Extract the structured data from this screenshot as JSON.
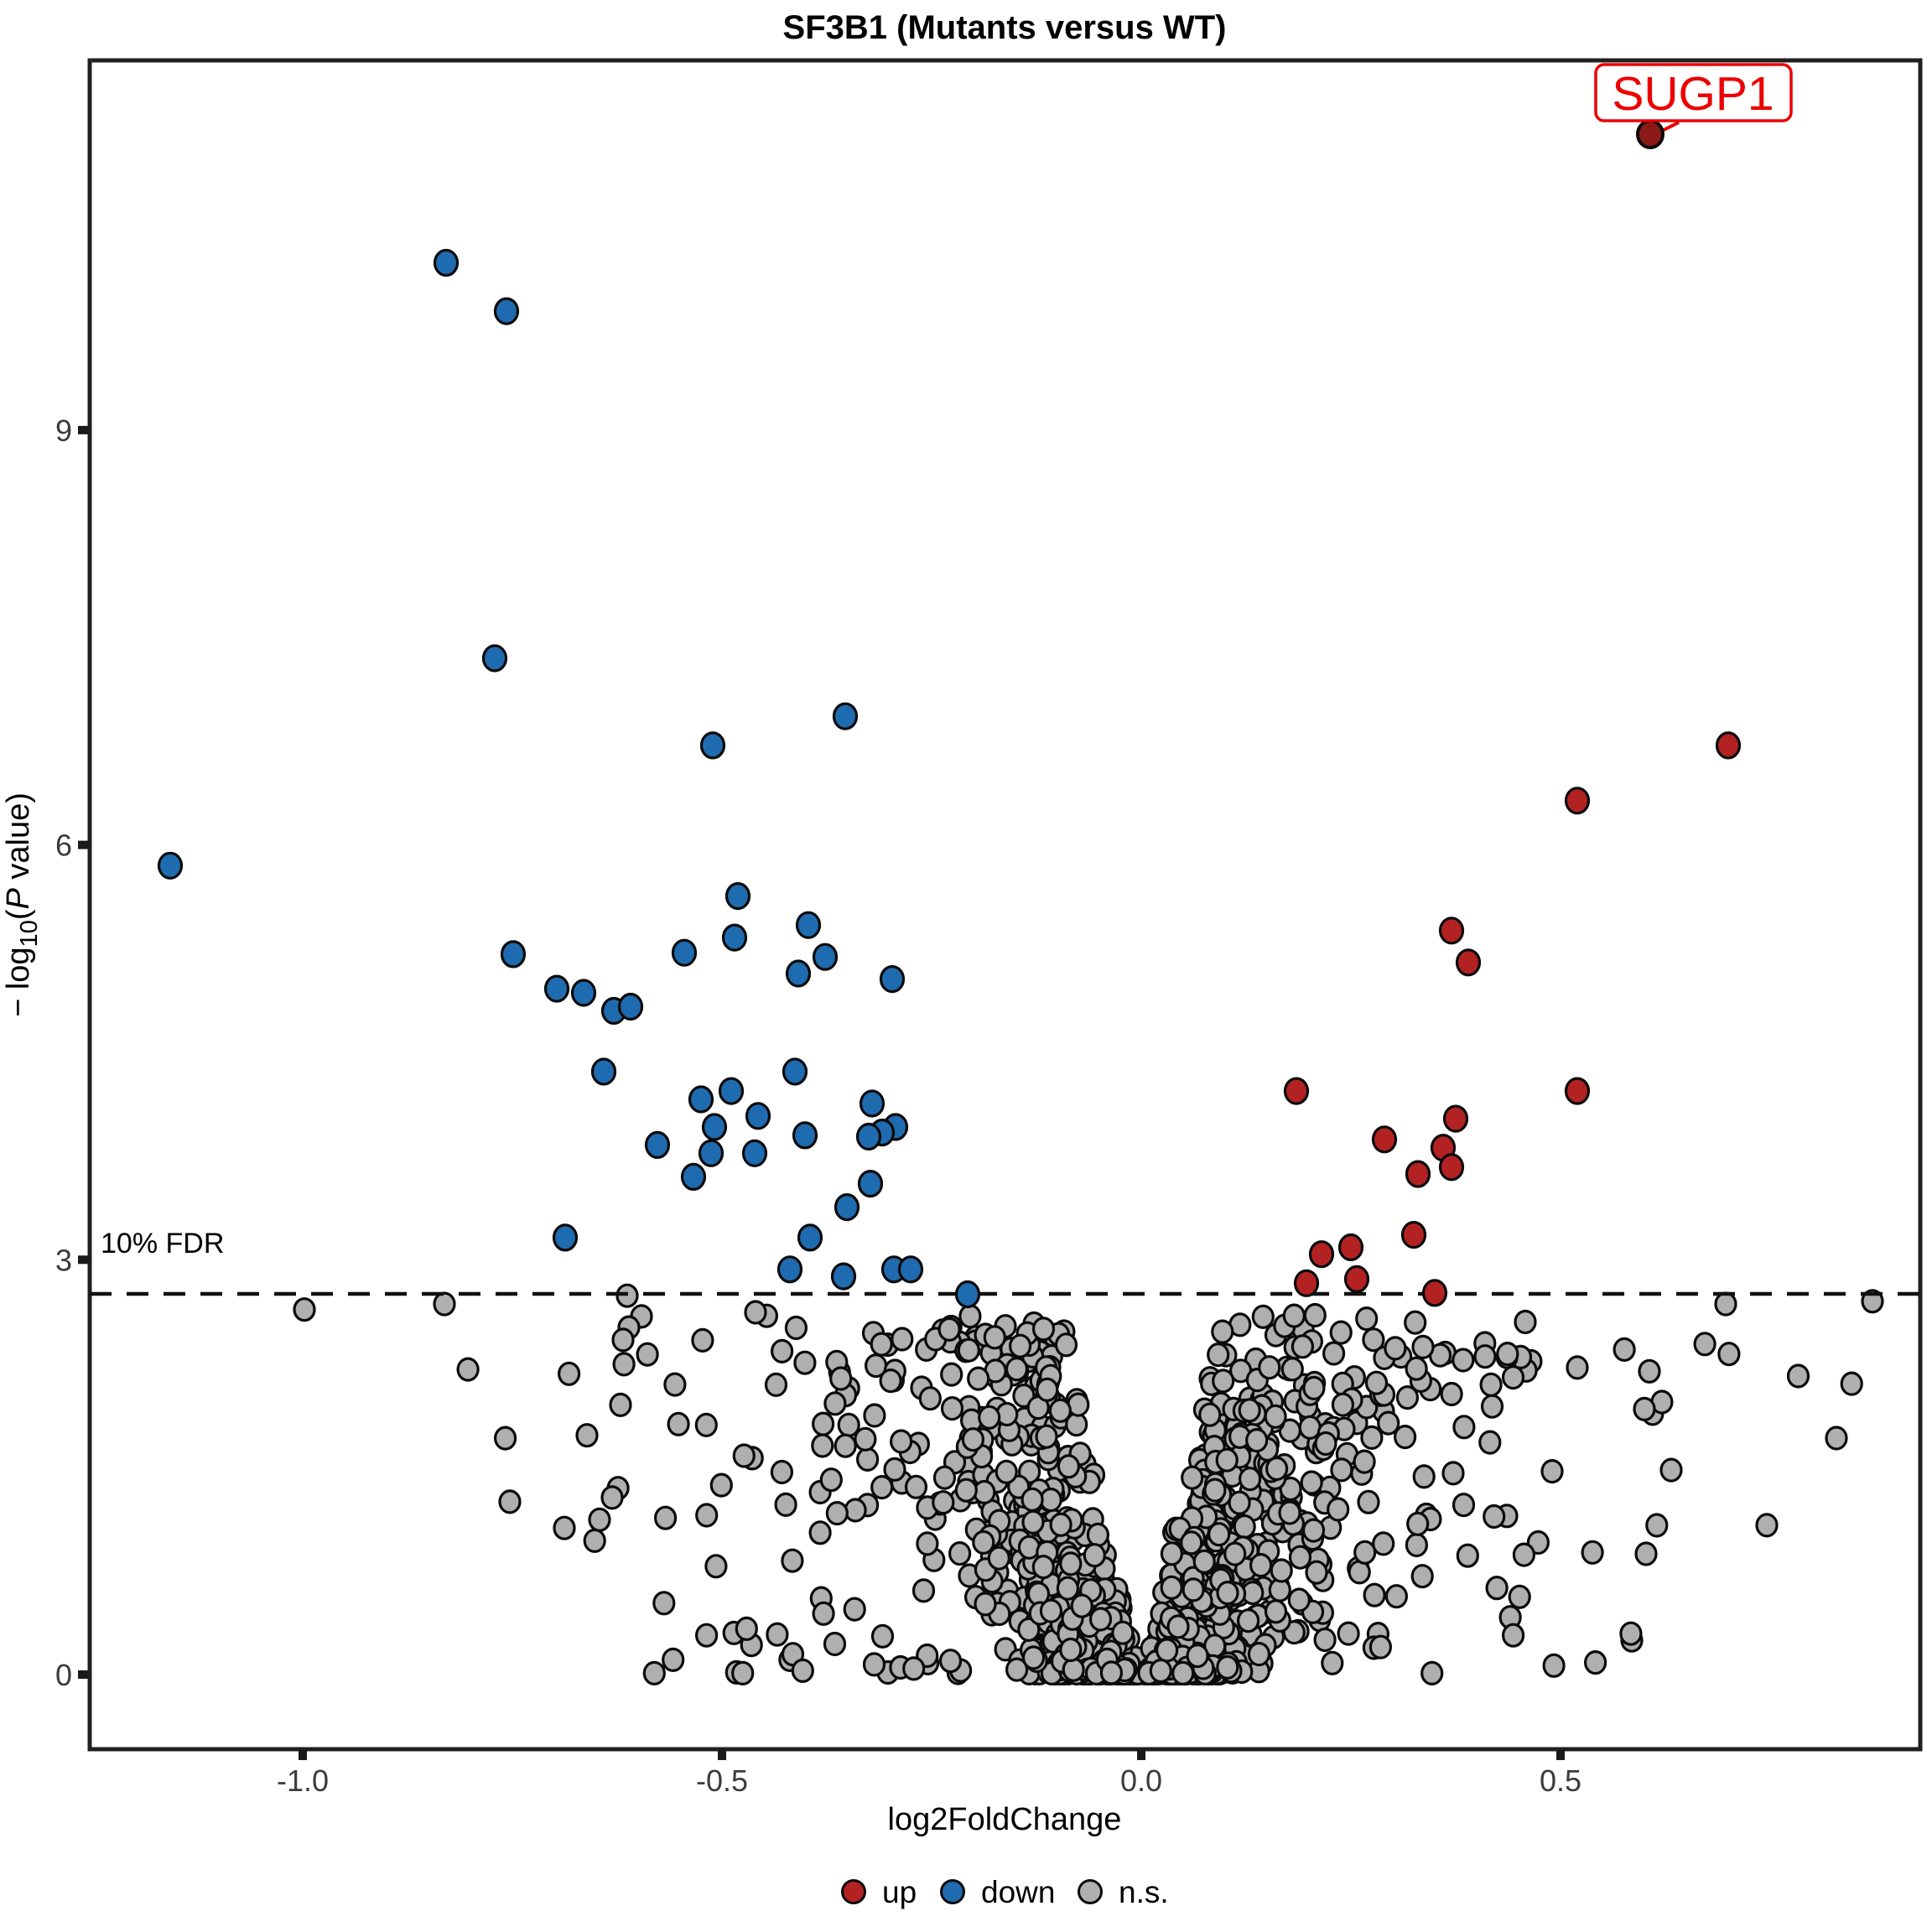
{
  "title": "SF3B1 (Mutants versus WT)",
  "annotation": {
    "label": "SUGP1"
  },
  "fdr": {
    "label": "10% FDR"
  },
  "legend": {
    "position": "bottom-center"
  },
  "colors": {
    "up": "#B22222",
    "down": "#1F6BB0",
    "ns": "#AFAFAF",
    "highlight_point": "#8B1A17",
    "annotation_red": "#EC0000",
    "point_stroke": "#0B0B0B",
    "panel_border": "#202020",
    "tick_label": "#3C3C3C"
  },
  "chart_data": {
    "type": "scatter",
    "title": "SF3B1 (Mutants versus WT)",
    "xlabel": "log2FoldChange",
    "ylabel": "-log10(P value)",
    "ylabel_parts": [
      {
        "t": "− log"
      },
      {
        "t": "10",
        "sub": true
      },
      {
        "t": "("
      },
      {
        "t": "P",
        "italic": true
      },
      {
        "t": " value)"
      }
    ],
    "xlim": [
      -1.25,
      0.93
    ],
    "ylim": [
      -0.55,
      11.7
    ],
    "x_ticks": {
      "values": [
        -1.0,
        -0.5,
        0.0,
        0.5
      ],
      "labels": [
        "-1.0",
        "-0.5",
        "0.0",
        "0.5"
      ]
    },
    "y_ticks": {
      "values": [
        0,
        3,
        6,
        9
      ],
      "labels": [
        "0",
        "3",
        "6",
        "9"
      ]
    },
    "grid": false,
    "legend_position": "bottom",
    "fdr_line": {
      "y": 2.75,
      "label": "10% FDR",
      "style": "dashed"
    },
    "highlight": {
      "label": "SUGP1",
      "x": 0.607,
      "y": 11.13
    },
    "series": [
      {
        "name": "up",
        "color": "#B22222",
        "points": [
          [
            0.7,
            6.72
          ],
          [
            0.52,
            6.32
          ],
          [
            0.37,
            5.38
          ],
          [
            0.39,
            5.15
          ],
          [
            0.185,
            4.22
          ],
          [
            0.52,
            4.22
          ],
          [
            0.375,
            4.02
          ],
          [
            0.29,
            3.87
          ],
          [
            0.36,
            3.81
          ],
          [
            0.37,
            3.67
          ],
          [
            0.33,
            3.62
          ],
          [
            0.325,
            3.18
          ],
          [
            0.25,
            3.09
          ],
          [
            0.215,
            3.04
          ],
          [
            0.257,
            2.86
          ],
          [
            0.197,
            2.83
          ],
          [
            0.35,
            2.76
          ]
        ]
      },
      {
        "name": "down",
        "color": "#1F6BB0",
        "points": [
          [
            -0.829,
            10.21
          ],
          [
            -0.757,
            9.86
          ],
          [
            -0.771,
            7.35
          ],
          [
            -0.353,
            6.93
          ],
          [
            -0.511,
            6.72
          ],
          [
            -1.158,
            5.85
          ],
          [
            -0.481,
            5.63
          ],
          [
            -0.397,
            5.42
          ],
          [
            -0.485,
            5.33
          ],
          [
            -0.545,
            5.22
          ],
          [
            -0.377,
            5.19
          ],
          [
            -0.749,
            5.21
          ],
          [
            -0.409,
            5.07
          ],
          [
            -0.297,
            5.03
          ],
          [
            -0.697,
            4.96
          ],
          [
            -0.665,
            4.93
          ],
          [
            -0.629,
            4.8
          ],
          [
            -0.609,
            4.83
          ],
          [
            -0.641,
            4.36
          ],
          [
            -0.413,
            4.36
          ],
          [
            -0.489,
            4.22
          ],
          [
            -0.525,
            4.16
          ],
          [
            -0.321,
            4.13
          ],
          [
            -0.457,
            4.04
          ],
          [
            -0.509,
            3.96
          ],
          [
            -0.293,
            3.96
          ],
          [
            -0.309,
            3.92
          ],
          [
            -0.325,
            3.89
          ],
          [
            -0.401,
            3.9
          ],
          [
            -0.577,
            3.83
          ],
          [
            -0.513,
            3.77
          ],
          [
            -0.461,
            3.77
          ],
          [
            -0.534,
            3.6
          ],
          [
            -0.323,
            3.55
          ],
          [
            -0.351,
            3.38
          ],
          [
            -0.687,
            3.16
          ],
          [
            -0.395,
            3.16
          ],
          [
            -0.419,
            2.93
          ],
          [
            -0.355,
            2.88
          ],
          [
            -0.295,
            2.93
          ],
          [
            -0.275,
            2.93
          ],
          [
            -0.207,
            2.75
          ]
        ]
      },
      {
        "name": "n.s.",
        "color": "#AFAFAF",
        "points": [
          [
            -0.998,
            2.64
          ],
          [
            -0.831,
            2.68
          ],
          [
            -0.613,
            2.74
          ],
          [
            -0.596,
            2.59
          ],
          [
            -0.611,
            2.51
          ],
          [
            -0.618,
            2.42
          ],
          [
            -0.621,
            1.95
          ],
          [
            -0.661,
            1.73
          ],
          [
            -0.753,
            1.25
          ],
          [
            -0.631,
            1.28
          ],
          [
            -0.646,
            1.12
          ],
          [
            -0.688,
            1.06
          ],
          [
            -0.46,
            2.62
          ],
          [
            0.872,
            2.7
          ],
          [
            0.697,
            2.68
          ],
          [
            0.458,
            2.55
          ],
          [
            0.52,
            2.22
          ],
          [
            0.6,
            1.92
          ],
          [
            0.49,
            1.47
          ],
          [
            0.829,
            1.71
          ],
          [
            0.746,
            1.08
          ],
          [
            0.41,
            2.3
          ]
        ],
        "cloud": {
          "count": 1300,
          "seed": 77,
          "model": "volcano-funnel",
          "y_max": 2.6,
          "x_max": 0.88
        }
      }
    ]
  }
}
